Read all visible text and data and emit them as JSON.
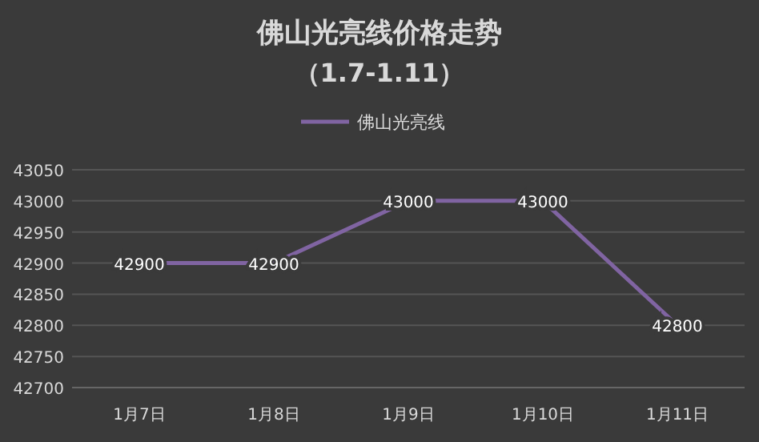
{
  "chart_data": {
    "type": "line",
    "title": "佛山光亮线价格走势",
    "subtitle": "（1.7-1.11）",
    "categories": [
      "1月7日",
      "1月8日",
      "1月9日",
      "1月10日",
      "1月11日"
    ],
    "series": [
      {
        "name": "佛山光亮线",
        "color": "#8064a2",
        "values": [
          42900,
          42900,
          43000,
          43000,
          42800
        ]
      }
    ],
    "ylim": [
      42700,
      43050
    ],
    "yticks": [
      42700,
      42750,
      42800,
      42850,
      42900,
      42950,
      43000,
      43050
    ],
    "grid": "y",
    "legend": "top",
    "data_labels": true,
    "line_style": "solid"
  }
}
